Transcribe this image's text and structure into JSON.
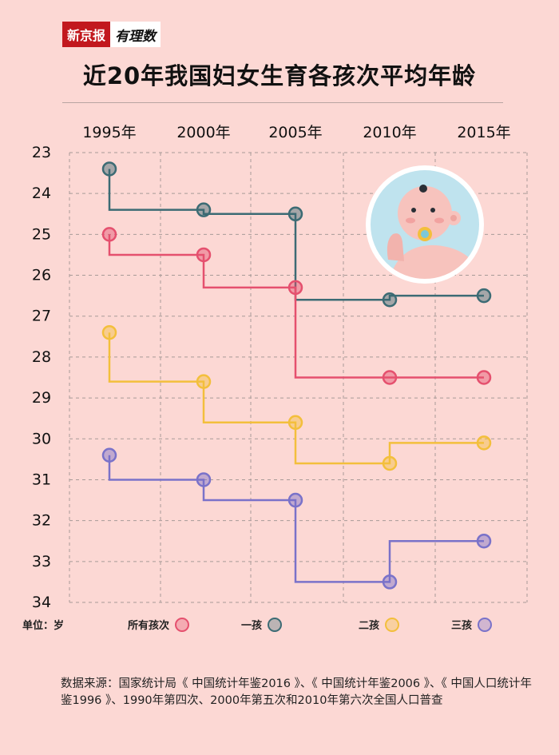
{
  "brand": {
    "name": "新京报",
    "column": "有理数"
  },
  "title": "近20年我国妇女生育各孩次平均年龄",
  "unit_label": "单位：岁",
  "legend": [
    {
      "label": "所有孩次",
      "color": "#e5506e"
    },
    {
      "label": "一孩",
      "color": "#3c6b74"
    },
    {
      "label": "二孩",
      "color": "#f3bf3c"
    },
    {
      "label": "三孩",
      "color": "#7a72c9"
    }
  ],
  "source": "数据来源：国家统计局《 中国统计年鉴2016 》、《 中国统计年鉴2006 》、《 中国人口统计年鉴1996 》、1990年第四次、2000年第五次和2010年第六次全国人口普查",
  "chart_data": {
    "type": "line",
    "x": [
      "1995年",
      "2000年",
      "2005年",
      "2010年",
      "2015年"
    ],
    "y_ticks": [
      23,
      24,
      25,
      26,
      27,
      28,
      29,
      30,
      31,
      32,
      33,
      34
    ],
    "ylim": [
      23,
      34
    ],
    "y_inverted": true,
    "step": true,
    "grid": true,
    "series": [
      {
        "name": "一孩",
        "color": "#3c6b74",
        "values": [
          23.4,
          24.4,
          24.5,
          26.6,
          26.5
        ]
      },
      {
        "name": "所有孩次",
        "color": "#e5506e",
        "values": [
          25.0,
          25.5,
          26.3,
          28.5,
          28.5
        ]
      },
      {
        "name": "二孩",
        "color": "#f3bf3c",
        "values": [
          27.4,
          28.6,
          29.6,
          30.6,
          30.1
        ]
      },
      {
        "name": "三孩",
        "color": "#7a72c9",
        "values": [
          30.4,
          31.0,
          31.5,
          33.5,
          32.5
        ]
      }
    ]
  }
}
